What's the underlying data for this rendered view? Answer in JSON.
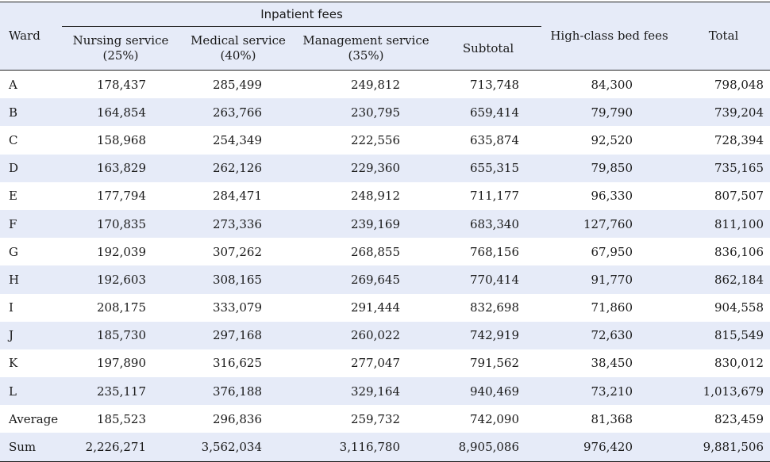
{
  "header": {
    "ward": "Ward",
    "inpatient_fees": "Inpatient fees",
    "nursing": "Nursing service",
    "nursing_pct": "(25%)",
    "medical": "Medical service",
    "medical_pct": "(40%)",
    "management": "Management service",
    "management_pct": "(35%)",
    "subtotal": "Subtotal",
    "high_class": "High-class bed fees",
    "total": "Total"
  },
  "rows": [
    {
      "ward": "A",
      "nursing": "178,437",
      "medical": "285,499",
      "management": "249,812",
      "subtotal": "713,748",
      "high_class": "84,300",
      "total": "798,048"
    },
    {
      "ward": "B",
      "nursing": "164,854",
      "medical": "263,766",
      "management": "230,795",
      "subtotal": "659,414",
      "high_class": "79,790",
      "total": "739,204"
    },
    {
      "ward": "C",
      "nursing": "158,968",
      "medical": "254,349",
      "management": "222,556",
      "subtotal": "635,874",
      "high_class": "92,520",
      "total": "728,394"
    },
    {
      "ward": "D",
      "nursing": "163,829",
      "medical": "262,126",
      "management": "229,360",
      "subtotal": "655,315",
      "high_class": "79,850",
      "total": "735,165"
    },
    {
      "ward": "E",
      "nursing": "177,794",
      "medical": "284,471",
      "management": "248,912",
      "subtotal": "711,177",
      "high_class": "96,330",
      "total": "807,507"
    },
    {
      "ward": "F",
      "nursing": "170,835",
      "medical": "273,336",
      "management": "239,169",
      "subtotal": "683,340",
      "high_class": "127,760",
      "total": "811,100"
    },
    {
      "ward": "G",
      "nursing": "192,039",
      "medical": "307,262",
      "management": "268,855",
      "subtotal": "768,156",
      "high_class": "67,950",
      "total": "836,106"
    },
    {
      "ward": "H",
      "nursing": "192,603",
      "medical": "308,165",
      "management": "269,645",
      "subtotal": "770,414",
      "high_class": "91,770",
      "total": "862,184"
    },
    {
      "ward": "I",
      "nursing": "208,175",
      "medical": "333,079",
      "management": "291,444",
      "subtotal": "832,698",
      "high_class": "71,860",
      "total": "904,558"
    },
    {
      "ward": "J",
      "nursing": "185,730",
      "medical": "297,168",
      "management": "260,022",
      "subtotal": "742,919",
      "high_class": "72,630",
      "total": "815,549"
    },
    {
      "ward": "K",
      "nursing": "197,890",
      "medical": "316,625",
      "management": "277,047",
      "subtotal": "791,562",
      "high_class": "38,450",
      "total": "830,012"
    },
    {
      "ward": "L",
      "nursing": "235,117",
      "medical": "376,188",
      "management": "329,164",
      "subtotal": "940,469",
      "high_class": "73,210",
      "total": "1,013,679"
    },
    {
      "ward": "Average",
      "nursing": "185,523",
      "medical": "296,836",
      "management": "259,732",
      "subtotal": "742,090",
      "high_class": "81,368",
      "total": "823,459"
    },
    {
      "ward": "Sum",
      "nursing": "2,226,271",
      "medical": "3,562,034",
      "management": "3,116,780",
      "subtotal": "8,905,086",
      "high_class": "976,420",
      "total": "9,881,506"
    }
  ]
}
